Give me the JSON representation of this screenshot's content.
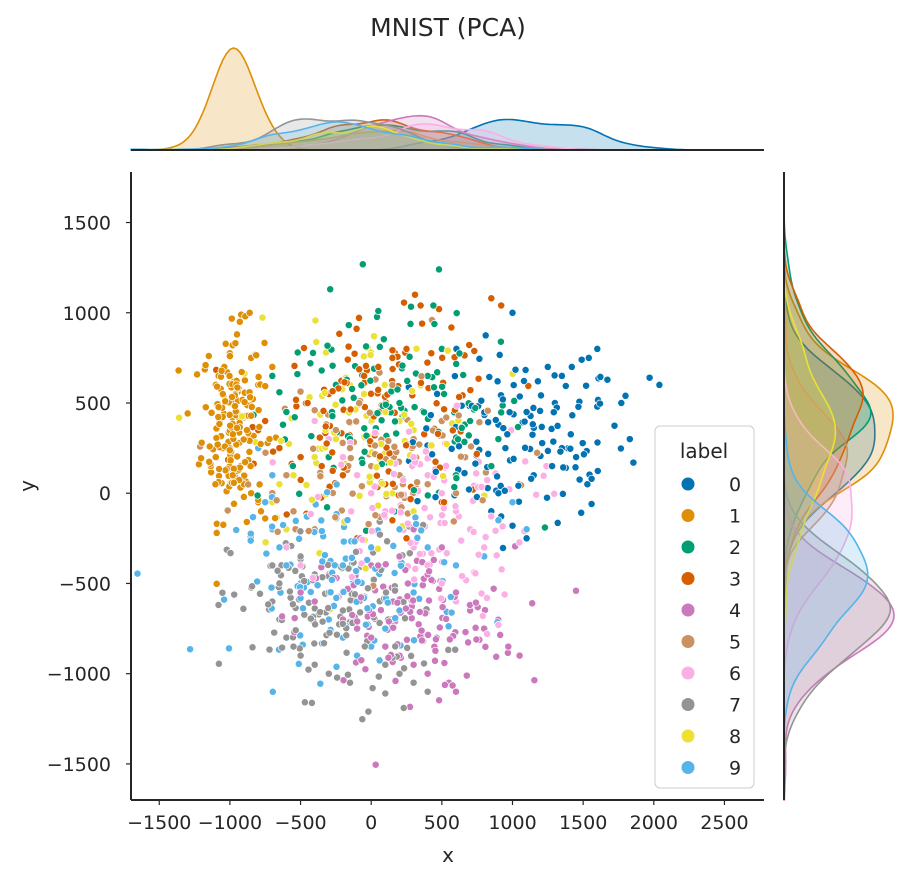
{
  "chart_data": {
    "type": "scatter",
    "title": "MNIST (PCA)",
    "xlabel": "x",
    "ylabel": "y",
    "xlim": [
      -1700,
      2780
    ],
    "ylim": [
      -1700,
      1780
    ],
    "x_ticks": [
      -1500,
      -1000,
      -500,
      0,
      500,
      1000,
      1500,
      2000,
      2500
    ],
    "y_ticks": [
      -1500,
      -1000,
      -500,
      0,
      500,
      1000,
      1500
    ],
    "x_tick_labels": [
      "−1500",
      "−1000",
      "−500",
      "0",
      "500",
      "1000",
      "1500",
      "2000",
      "2500"
    ],
    "y_tick_labels": [
      "−1500",
      "−1000",
      "−500",
      "0",
      "500",
      "1000",
      "1500"
    ],
    "grid": false,
    "legend_title": "label",
    "legend_position": "lower-right",
    "marginal_plots": "kde",
    "series": [
      {
        "name": "0",
        "color": "#0173b2",
        "center": [
          1050,
          300
        ],
        "spread": [
          380,
          230
        ],
        "count": 120,
        "points": [
          [
            1600,
            800
          ],
          [
            1540,
            750
          ],
          [
            1490,
            740
          ],
          [
            1420,
            700
          ],
          [
            1350,
            650
          ],
          [
            1970,
            640
          ],
          [
            2040,
            600
          ],
          [
            1800,
            540
          ],
          [
            1770,
            500
          ],
          [
            1600,
            480
          ],
          [
            1830,
            300
          ],
          [
            1560,
            80
          ],
          [
            1530,
            50
          ],
          [
            1560,
            -60
          ],
          [
            1000,
            1000
          ],
          [
            1250,
            700
          ],
          [
            1180,
            620
          ],
          [
            1300,
            500
          ],
          [
            1100,
            450
          ],
          [
            900,
            380
          ],
          [
            950,
            250
          ],
          [
            1350,
            250
          ],
          [
            1450,
            200
          ],
          [
            1280,
            150
          ],
          [
            1150,
            100
          ],
          [
            1050,
            50
          ],
          [
            900,
            0
          ],
          [
            850,
            -100
          ],
          [
            1000,
            -180
          ],
          [
            1100,
            -250
          ]
        ]
      },
      {
        "name": "1",
        "color": "#de8f05",
        "center": [
          -980,
          380
        ],
        "spread": [
          110,
          260
        ],
        "count": 160,
        "points": [
          [
            -920,
            990
          ],
          [
            -860,
            1000
          ],
          [
            -930,
            950
          ],
          [
            -950,
            880
          ],
          [
            -980,
            820
          ],
          [
            -1000,
            760
          ],
          [
            -1040,
            700
          ],
          [
            -1080,
            650
          ],
          [
            -1100,
            600
          ],
          [
            -1050,
            550
          ],
          [
            -1000,
            500
          ],
          [
            -950,
            450
          ],
          [
            -900,
            420
          ],
          [
            -880,
            350
          ],
          [
            -1050,
            250
          ],
          [
            -1100,
            200
          ],
          [
            -980,
            100
          ],
          [
            -900,
            50
          ],
          [
            -850,
            0
          ],
          [
            -800,
            -50
          ],
          [
            -780,
            -100
          ],
          [
            -750,
            -140
          ],
          [
            -700,
            100
          ],
          [
            -720,
            300
          ],
          [
            -800,
            600
          ],
          [
            -850,
            750
          ],
          [
            -700,
            700
          ]
        ]
      },
      {
        "name": "2",
        "color": "#029e73",
        "center": [
          150,
          450
        ],
        "spread": [
          480,
          250
        ],
        "count": 110,
        "points": [
          [
            480,
            1240
          ],
          [
            -290,
            1130
          ],
          [
            50,
            1010
          ],
          [
            440,
            1040
          ],
          [
            -520,
            780
          ],
          [
            -430,
            720
          ],
          [
            -350,
            680
          ],
          [
            -250,
            600
          ],
          [
            -700,
            650
          ],
          [
            -650,
            560
          ],
          [
            -600,
            450
          ],
          [
            900,
            300
          ],
          [
            700,
            400
          ],
          [
            850,
            150
          ],
          [
            600,
            100
          ],
          [
            500,
            800
          ],
          [
            400,
            650
          ],
          [
            200,
            500
          ],
          [
            0,
            400
          ],
          [
            -150,
            300
          ],
          [
            -300,
            200
          ],
          [
            -100,
            100
          ]
        ]
      },
      {
        "name": "3",
        "color": "#d55e00",
        "center": [
          100,
          420
        ],
        "spread": [
          420,
          260
        ],
        "count": 120,
        "points": [
          [
            310,
            1100
          ],
          [
            850,
            1080
          ],
          [
            920,
            1040
          ],
          [
            480,
            1020
          ],
          [
            360,
            940
          ],
          [
            250,
            800
          ],
          [
            150,
            750
          ],
          [
            50,
            700
          ],
          [
            -50,
            650
          ],
          [
            -150,
            600
          ],
          [
            -300,
            550
          ],
          [
            -450,
            500
          ],
          [
            -600,
            450
          ],
          [
            -750,
            400
          ],
          [
            -800,
            350
          ],
          [
            -650,
            250
          ],
          [
            -500,
            200
          ],
          [
            -350,
            150
          ],
          [
            -200,
            100
          ],
          [
            100,
            50
          ],
          [
            300,
            0
          ],
          [
            500,
            -50
          ],
          [
            150,
            -150
          ],
          [
            250,
            -250
          ],
          [
            -100,
            -250
          ]
        ]
      },
      {
        "name": "4",
        "color": "#cc78bc",
        "center": [
          250,
          -700
        ],
        "spread": [
          380,
          200
        ],
        "count": 120,
        "points": [
          [
            1050,
            -900
          ],
          [
            970,
            -850
          ],
          [
            600,
            -1100
          ],
          [
            550,
            -1050
          ],
          [
            400,
            -1000
          ],
          [
            300,
            -950
          ],
          [
            200,
            -900
          ],
          [
            100,
            -850
          ],
          [
            0,
            -800
          ],
          [
            -100,
            -750
          ],
          [
            -200,
            -700
          ],
          [
            -300,
            -650
          ],
          [
            -400,
            -600
          ],
          [
            -500,
            -550
          ],
          [
            -300,
            -450
          ],
          [
            0,
            -400
          ],
          [
            200,
            -350
          ],
          [
            400,
            -450
          ],
          [
            600,
            -550
          ],
          [
            700,
            -650
          ],
          [
            800,
            -750
          ],
          [
            500,
            -300
          ],
          [
            300,
            -200
          ]
        ]
      },
      {
        "name": "5",
        "color": "#ca9161",
        "center": [
          100,
          200
        ],
        "spread": [
          450,
          250
        ],
        "count": 80,
        "points": [
          [
            430,
            960
          ],
          [
            -400,
            460
          ],
          [
            -250,
            350
          ],
          [
            -150,
            250
          ],
          [
            0,
            150
          ],
          [
            200,
            100
          ],
          [
            400,
            50
          ],
          [
            600,
            0
          ],
          [
            -600,
            100
          ],
          [
            -700,
            0
          ],
          [
            -550,
            -100
          ],
          [
            -400,
            -200
          ],
          [
            300,
            300
          ],
          [
            500,
            400
          ],
          [
            150,
            600
          ]
        ]
      },
      {
        "name": "6",
        "color": "#fbafe4",
        "center": [
          350,
          -100
        ],
        "spread": [
          400,
          250
        ],
        "count": 100,
        "points": [
          [
            900,
            -730
          ],
          [
            820,
            -780
          ],
          [
            790,
            -680
          ],
          [
            600,
            -600
          ],
          [
            500,
            -500
          ],
          [
            400,
            -400
          ],
          [
            300,
            -300
          ],
          [
            200,
            -200
          ],
          [
            100,
            -100
          ],
          [
            0,
            0
          ],
          [
            -100,
            100
          ],
          [
            -200,
            200
          ],
          [
            -300,
            300
          ],
          [
            -400,
            400
          ],
          [
            700,
            -200
          ],
          [
            800,
            -300
          ],
          [
            600,
            -100
          ],
          [
            500,
            0
          ],
          [
            400,
            100
          ],
          [
            300,
            200
          ],
          [
            -500,
            -400
          ],
          [
            -600,
            -300
          ]
        ]
      },
      {
        "name": "7",
        "color": "#949494",
        "center": [
          -250,
          -650
        ],
        "spread": [
          370,
          230
        ],
        "count": 130,
        "points": [
          [
            -20,
            -1210
          ],
          [
            230,
            -1190
          ],
          [
            100,
            -1110
          ],
          [
            10,
            -1080
          ],
          [
            -150,
            -1050
          ],
          [
            -300,
            -1000
          ],
          [
            -400,
            -950
          ],
          [
            -500,
            -900
          ],
          [
            -550,
            -850
          ],
          [
            -600,
            -800
          ],
          [
            -650,
            -700
          ],
          [
            -700,
            -600
          ],
          [
            -650,
            -500
          ],
          [
            -700,
            -400
          ],
          [
            -600,
            -300
          ],
          [
            -500,
            -350
          ],
          [
            -400,
            -450
          ],
          [
            -300,
            -550
          ],
          [
            -200,
            -650
          ],
          [
            -100,
            -750
          ],
          [
            0,
            -850
          ],
          [
            100,
            -950
          ],
          [
            200,
            -1000
          ],
          [
            300,
            -1050
          ],
          [
            400,
            -1100
          ]
        ]
      },
      {
        "name": "8",
        "color": "#ece133",
        "center": [
          -100,
          300
        ],
        "spread": [
          420,
          300
        ],
        "count": 80,
        "points": [
          [
            20,
            870
          ],
          [
            -320,
            780
          ],
          [
            -180,
            640
          ],
          [
            -50,
            550
          ],
          [
            100,
            450
          ],
          [
            200,
            400
          ],
          [
            300,
            350
          ],
          [
            -250,
            300
          ],
          [
            -400,
            200
          ],
          [
            -550,
            100
          ],
          [
            -650,
            50
          ],
          [
            -700,
            -50
          ],
          [
            -600,
            -200
          ],
          [
            150,
            0
          ],
          [
            300,
            -100
          ]
        ]
      },
      {
        "name": "9",
        "color": "#56b4e9",
        "center": [
          -150,
          -480
        ],
        "spread": [
          400,
          220
        ],
        "count": 110,
        "points": [
          [
            1100,
            -200
          ],
          [
            1000,
            -50
          ],
          [
            900,
            -150
          ],
          [
            800,
            -350
          ],
          [
            -800,
            250
          ],
          [
            -700,
            100
          ],
          [
            -750,
            -50
          ],
          [
            -700,
            -200
          ],
          [
            -650,
            -300
          ],
          [
            -600,
            -400
          ],
          [
            -500,
            -500
          ],
          [
            -400,
            -600
          ],
          [
            -300,
            -700
          ],
          [
            -200,
            -800
          ],
          [
            -100,
            -900
          ],
          [
            0,
            -850
          ],
          [
            100,
            -750
          ],
          [
            200,
            -650
          ],
          [
            300,
            -550
          ],
          [
            -200,
            -400
          ],
          [
            0,
            -300
          ],
          [
            200,
            -200
          ],
          [
            400,
            -300
          ],
          [
            600,
            -400
          ]
        ]
      }
    ]
  }
}
